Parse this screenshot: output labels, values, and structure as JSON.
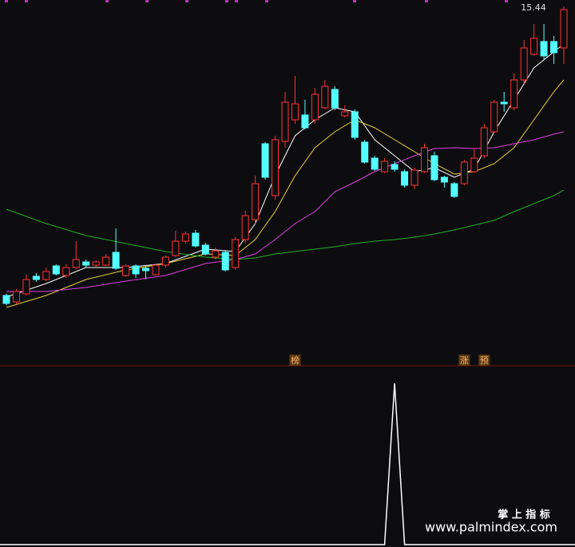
{
  "chart_data": {
    "type": "candlestick",
    "high_label": "15.44",
    "ylim": [
      6.44,
      15.6
    ],
    "up_color": "#ff3232",
    "down_color": "#54ffff",
    "candles": [
      [
        8.2,
        8.24,
        7.96,
        8.0
      ],
      [
        8.04,
        8.36,
        7.98,
        8.3
      ],
      [
        8.24,
        8.72,
        8.2,
        8.6
      ],
      [
        8.68,
        8.76,
        8.54,
        8.6
      ],
      [
        8.6,
        8.9,
        8.56,
        8.8
      ],
      [
        8.94,
        8.98,
        8.7,
        8.74
      ],
      [
        8.7,
        8.98,
        8.64,
        8.9
      ],
      [
        8.9,
        9.56,
        8.86,
        9.1
      ],
      [
        9.04,
        9.1,
        8.9,
        8.96
      ],
      [
        8.96,
        9.08,
        8.92,
        9.04
      ],
      [
        8.96,
        9.24,
        8.94,
        9.16
      ],
      [
        9.28,
        9.88,
        8.84,
        8.88
      ],
      [
        8.7,
        8.98,
        8.66,
        8.94
      ],
      [
        8.94,
        8.98,
        8.64,
        8.74
      ],
      [
        8.88,
        8.96,
        8.6,
        8.82
      ],
      [
        8.72,
        9.0,
        8.7,
        8.96
      ],
      [
        8.96,
        9.2,
        8.9,
        9.16
      ],
      [
        9.2,
        9.82,
        9.16,
        9.56
      ],
      [
        9.56,
        9.8,
        9.5,
        9.74
      ],
      [
        9.76,
        9.84,
        9.4,
        9.44
      ],
      [
        9.46,
        9.52,
        9.2,
        9.24
      ],
      [
        9.16,
        9.4,
        9.1,
        9.32
      ],
      [
        9.28,
        9.34,
        8.8,
        8.84
      ],
      [
        8.9,
        9.66,
        8.84,
        9.6
      ],
      [
        9.6,
        10.32,
        9.5,
        10.2
      ],
      [
        10.1,
        11.2,
        10.0,
        11.0
      ],
      [
        12.0,
        12.04,
        11.1,
        11.16
      ],
      [
        10.7,
        12.2,
        10.6,
        12.1
      ],
      [
        12.06,
        13.3,
        11.9,
        13.04
      ],
      [
        12.6,
        13.7,
        12.5,
        13.0
      ],
      [
        12.72,
        13.1,
        12.36,
        12.4
      ],
      [
        12.6,
        13.4,
        12.5,
        13.24
      ],
      [
        12.9,
        13.6,
        12.86,
        13.44
      ],
      [
        13.36,
        13.44,
        12.84,
        12.9
      ],
      [
        12.7,
        12.96,
        12.66,
        12.8
      ],
      [
        12.8,
        12.86,
        12.1,
        12.16
      ],
      [
        12.04,
        12.1,
        11.5,
        11.54
      ],
      [
        11.64,
        11.7,
        11.32,
        11.36
      ],
      [
        11.3,
        11.64,
        11.26,
        11.56
      ],
      [
        11.48,
        11.56,
        11.3,
        11.36
      ],
      [
        11.3,
        11.36,
        10.9,
        10.96
      ],
      [
        10.96,
        11.4,
        10.86,
        11.34
      ],
      [
        11.3,
        12.0,
        11.26,
        11.9
      ],
      [
        11.7,
        11.8,
        11.06,
        11.1
      ],
      [
        11.16,
        11.2,
        10.9,
        11.04
      ],
      [
        11.0,
        11.04,
        10.64,
        10.68
      ],
      [
        11.0,
        11.6,
        10.96,
        11.54
      ],
      [
        11.3,
        11.9,
        11.26,
        11.64
      ],
      [
        11.7,
        12.5,
        11.64,
        12.4
      ],
      [
        12.3,
        13.1,
        12.26,
        13.04
      ],
      [
        13.04,
        13.3,
        12.8,
        13.0
      ],
      [
        12.9,
        13.76,
        12.84,
        13.6
      ],
      [
        13.6,
        14.6,
        13.5,
        14.4
      ],
      [
        14.24,
        15.0,
        14.2,
        14.64
      ],
      [
        14.56,
        15.0,
        14.1,
        14.2
      ],
      [
        14.56,
        14.7,
        14.0,
        14.28
      ],
      [
        14.4,
        15.44,
        14.0,
        15.36
      ]
    ],
    "lines": [
      {
        "color": "#ffffff",
        "x": [
          0,
          4,
          8,
          12,
          16,
          20,
          23,
          25,
          27,
          29,
          31,
          33,
          35,
          37,
          39,
          41,
          43,
          45,
          47,
          49,
          51,
          53,
          55,
          56
        ],
        "values": [
          8.16,
          8.5,
          8.9,
          8.9,
          9.0,
          9.36,
          9.3,
          10.0,
          11.2,
          12.2,
          12.6,
          12.9,
          12.8,
          12.1,
          11.7,
          11.3,
          11.4,
          11.16,
          11.36,
          12.3,
          13.1,
          13.9,
          14.3,
          14.5
        ]
      },
      {
        "color": "#e8d23a",
        "x": [
          0,
          4,
          8,
          12,
          16,
          20,
          23,
          25,
          27,
          29,
          31,
          33,
          35,
          37,
          39,
          41,
          43,
          45,
          47,
          49,
          51,
          53,
          55,
          56
        ],
        "values": [
          7.9,
          8.2,
          8.6,
          8.84,
          9.0,
          9.24,
          9.2,
          9.6,
          10.3,
          11.2,
          11.9,
          12.3,
          12.6,
          12.4,
          12.1,
          11.8,
          11.5,
          11.24,
          11.3,
          11.5,
          11.9,
          12.6,
          13.3,
          13.6
        ]
      },
      {
        "color": "#e040e0",
        "x": [
          0,
          4,
          8,
          12,
          16,
          20,
          23,
          25,
          27,
          29,
          31,
          33,
          35,
          37,
          39,
          41,
          43,
          45,
          47,
          49,
          51,
          53,
          55,
          56
        ],
        "values": [
          8.3,
          8.3,
          8.4,
          8.56,
          8.7,
          9.0,
          9.1,
          9.24,
          9.6,
          10.0,
          10.3,
          10.8,
          11.04,
          11.3,
          11.5,
          11.7,
          11.88,
          11.9,
          11.88,
          11.9,
          12.0,
          12.1,
          12.24,
          12.3
        ]
      },
      {
        "color": "#22b022",
        "x": [
          0,
          4,
          8,
          12,
          16,
          20,
          23,
          25,
          27,
          29,
          31,
          33,
          35,
          37,
          39,
          41,
          43,
          45,
          47,
          49,
          51,
          53,
          55,
          56
        ],
        "values": [
          10.36,
          10.0,
          9.7,
          9.5,
          9.3,
          9.16,
          9.1,
          9.14,
          9.24,
          9.3,
          9.36,
          9.42,
          9.5,
          9.56,
          9.6,
          9.66,
          9.74,
          9.84,
          9.96,
          10.08,
          10.3,
          10.5,
          10.7,
          10.84
        ]
      }
    ],
    "signals": [
      {
        "index": 29,
        "text": "榜"
      },
      {
        "index": 46,
        "text": "涨"
      },
      {
        "index": 48,
        "text": "预"
      }
    ],
    "indicator": {
      "ylim": [
        0,
        1
      ],
      "color": "#ffffff",
      "values": [
        0,
        0,
        0,
        0,
        0,
        0,
        0,
        0,
        0,
        0,
        0,
        0,
        0,
        0,
        0,
        0,
        0,
        0,
        0,
        0,
        0,
        0,
        0,
        0,
        0,
        0,
        0,
        0,
        0,
        0,
        0,
        0,
        0,
        0,
        0,
        0,
        0,
        0,
        0,
        1,
        0,
        0,
        0,
        0,
        0,
        0,
        0,
        0,
        0,
        0,
        0,
        0,
        0,
        0,
        0,
        0,
        0
      ]
    }
  },
  "watermark": {
    "title": "掌 上 指 标",
    "url": "www.palmindex.com"
  }
}
